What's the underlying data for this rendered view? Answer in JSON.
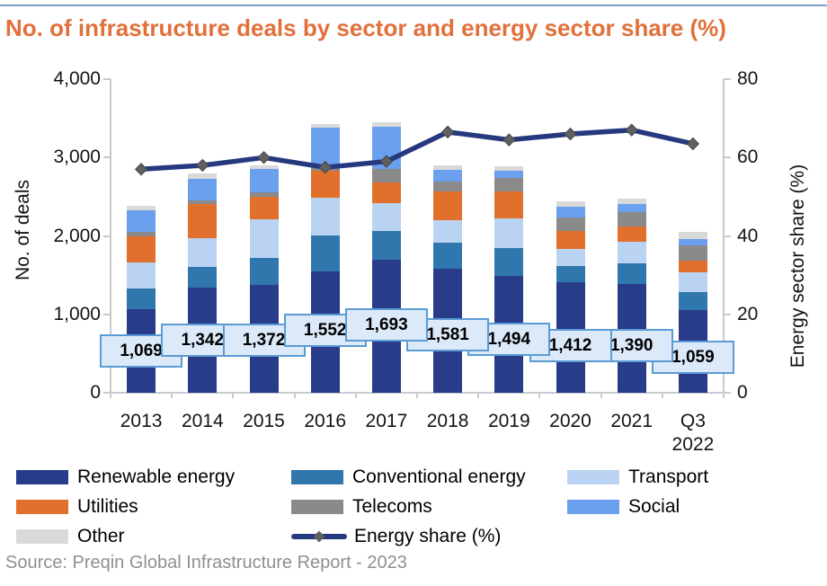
{
  "title": "No. of infrastructure deals by sector and energy sector share (%)",
  "source": "Source: Preqin Global Infrastructure Report - 2023",
  "accent_colors": {
    "title_orange": "#e2703a",
    "top_rule_blue": "#7aa3c4",
    "data_label_fill": "#dce9f8",
    "data_label_border": "#5b9bd5"
  },
  "chart_data": {
    "type": "bar",
    "subtype": "stacked-bar-with-line",
    "categories": [
      "2013",
      "2014",
      "2015",
      "2016",
      "2017",
      "2018",
      "2019",
      "2020",
      "2021",
      "Q3 2022"
    ],
    "series": [
      {
        "name": "Renewable energy",
        "color": "#283c8a",
        "values": [
          1069,
          1342,
          1372,
          1552,
          1693,
          1581,
          1494,
          1412,
          1390,
          1059
        ]
      },
      {
        "name": "Conventional energy",
        "color": "#3077ad",
        "values": [
          260,
          265,
          350,
          455,
          375,
          333,
          351,
          204,
          264,
          225
        ]
      },
      {
        "name": "Transport",
        "color": "#bad3f2",
        "values": [
          330,
          365,
          495,
          480,
          345,
          286,
          382,
          221,
          268,
          250
        ]
      },
      {
        "name": "Utilities",
        "color": "#e2702d",
        "values": [
          330,
          430,
          285,
          345,
          270,
          364,
          344,
          222,
          202,
          155
        ]
      },
      {
        "name": "Telecoms",
        "color": "#8a8a8a",
        "values": [
          60,
          45,
          50,
          60,
          170,
          126,
          165,
          179,
          179,
          190
        ]
      },
      {
        "name": "Social",
        "color": "#6ba0ee",
        "values": [
          280,
          285,
          305,
          490,
          545,
          153,
          95,
          134,
          100,
          80
        ]
      },
      {
        "name": "Other",
        "color": "#d9d9d9",
        "values": [
          50,
          60,
          45,
          40,
          55,
          57,
          57,
          69,
          76,
          90
        ]
      }
    ],
    "line": {
      "name": "Energy share (%)",
      "color": "#27397e",
      "marker": "diamond",
      "marker_color": "#5f6062",
      "values": [
        57,
        58,
        60,
        57.5,
        59,
        66.5,
        64.5,
        66,
        67,
        63.5
      ]
    },
    "data_labels": [
      "1,069",
      "1,342",
      "1,372",
      "1,552",
      "1,693",
      "1,581",
      "1,494",
      "1,412",
      "1,390",
      "1,059"
    ],
    "left_axis": {
      "label": "No. of deals",
      "min": 0,
      "max": 4000,
      "ticks": [
        {
          "value": 4000,
          "label": "4,000"
        },
        {
          "value": 3000,
          "label": "3,000"
        },
        {
          "value": 2000,
          "label": "2,000"
        },
        {
          "value": 1000,
          "label": "1,000"
        },
        {
          "value": 0,
          "label": "0"
        }
      ]
    },
    "right_axis": {
      "label": "Energy sector share (%)",
      "min": 0,
      "max": 80,
      "ticks": [
        {
          "value": 80,
          "label": "80"
        },
        {
          "value": 60,
          "label": "60"
        },
        {
          "value": 40,
          "label": "40"
        },
        {
          "value": 20,
          "label": "20"
        },
        {
          "value": 0,
          "label": "0"
        }
      ]
    },
    "grid": false,
    "legend_position": "bottom"
  }
}
